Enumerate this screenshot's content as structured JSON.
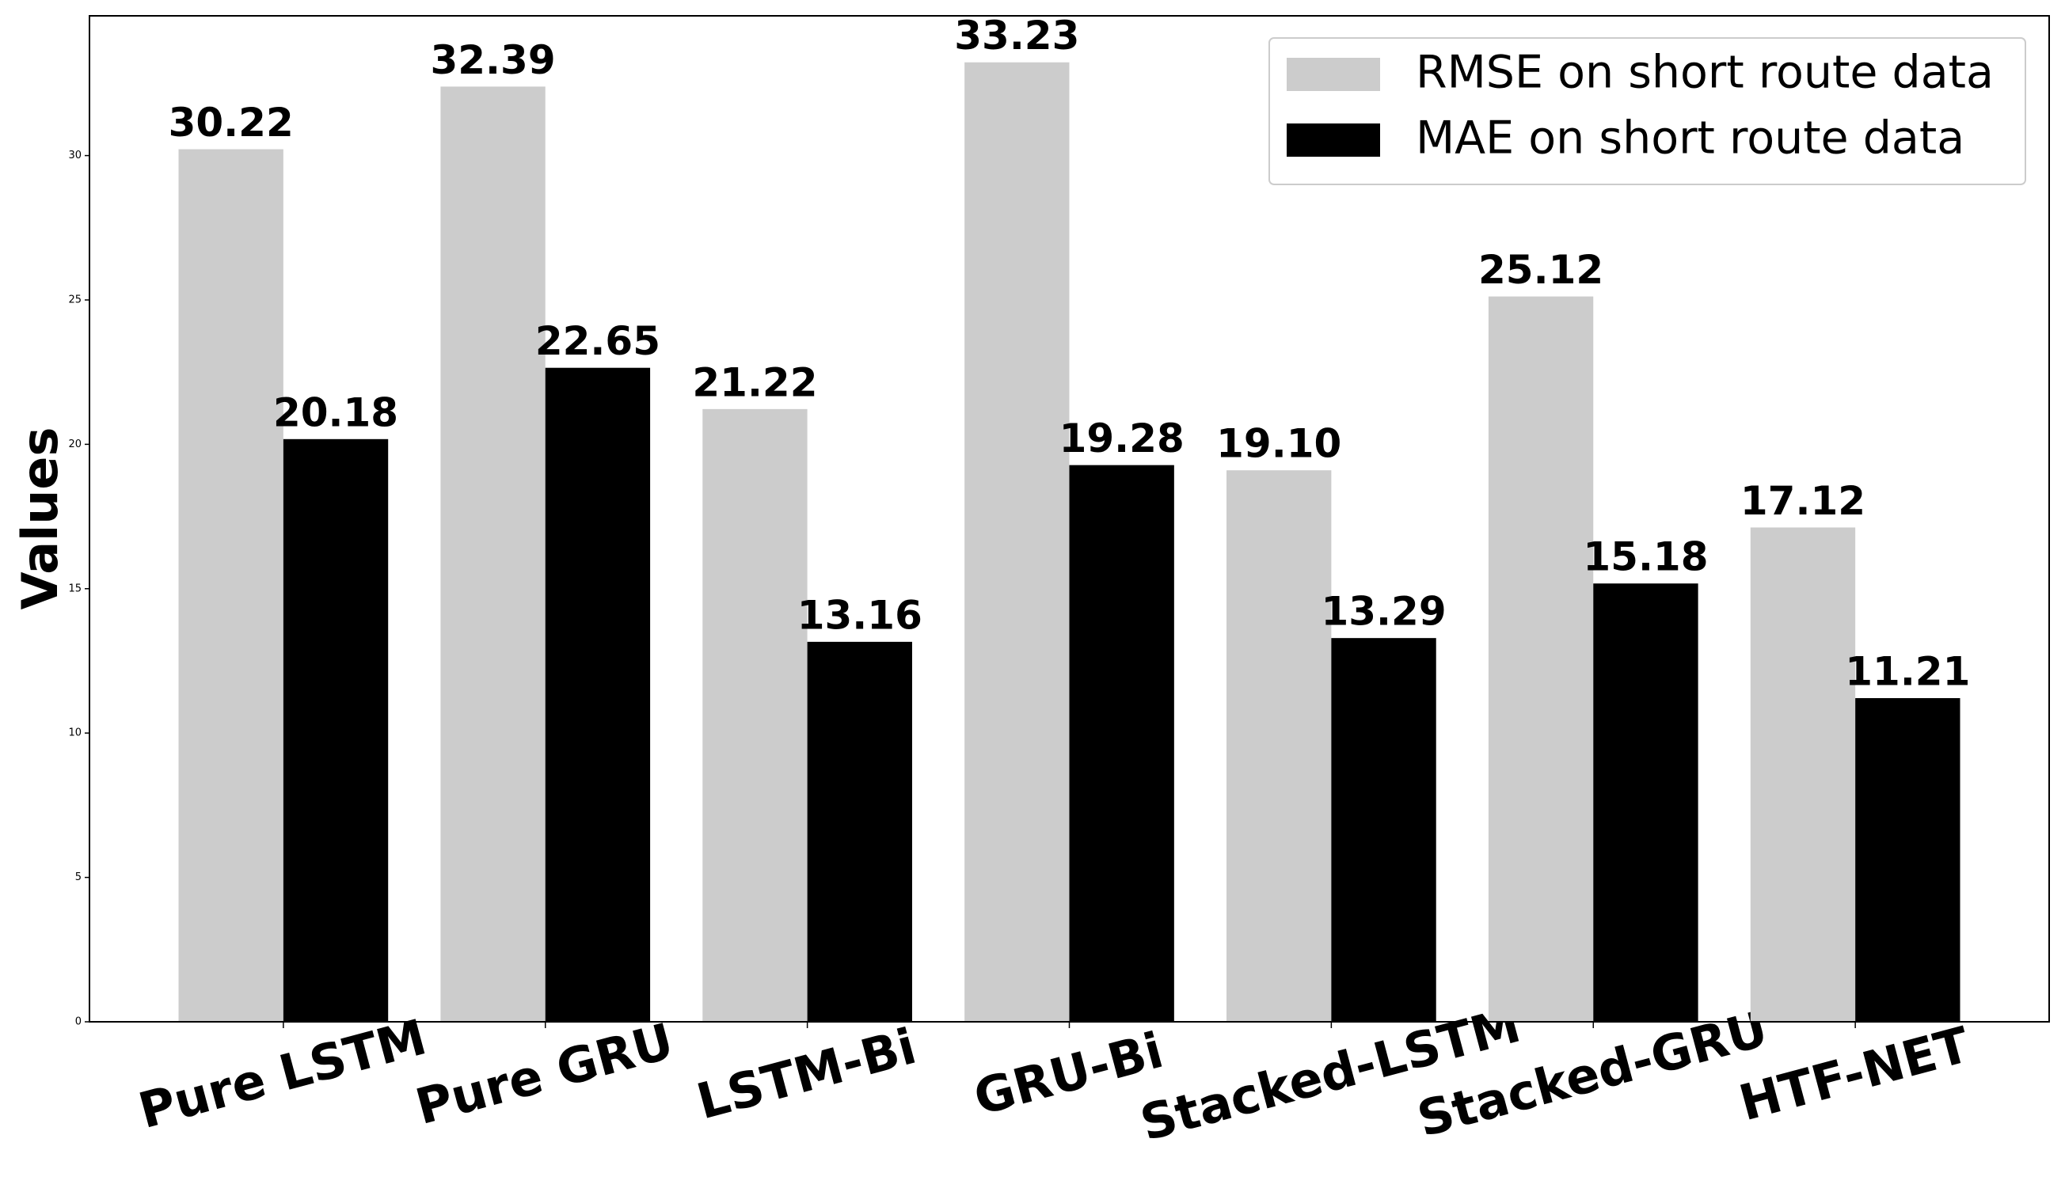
{
  "chart_data": {
    "type": "bar",
    "y_label": "Values",
    "categories": [
      "Pure LSTM",
      "Pure GRU",
      "LSTM-Bi",
      "GRU-Bi",
      "Stacked-LSTM",
      "Stacked-GRU",
      "HTF-NET"
    ],
    "series": [
      {
        "name": "RMSE on short route data",
        "color": "#cccccc",
        "values": [
          30.22,
          32.39,
          21.22,
          33.23,
          19.1,
          25.12,
          17.12
        ],
        "value_labels": [
          "30.22",
          "32.39",
          "21.22",
          "33.23",
          "19.10",
          "25.12",
          "17.12"
        ]
      },
      {
        "name": "MAE on short route data",
        "color": "#000000",
        "values": [
          20.18,
          22.65,
          13.16,
          19.28,
          13.29,
          15.18,
          11.21
        ],
        "value_labels": [
          "20.18",
          "22.65",
          "13.16",
          "19.28",
          "13.29",
          "15.18",
          "11.21"
        ]
      }
    ],
    "ylim": [
      0,
      34.84
    ],
    "yticks": [
      0,
      5,
      10,
      15,
      20,
      25,
      30
    ],
    "legend": "upper right"
  }
}
